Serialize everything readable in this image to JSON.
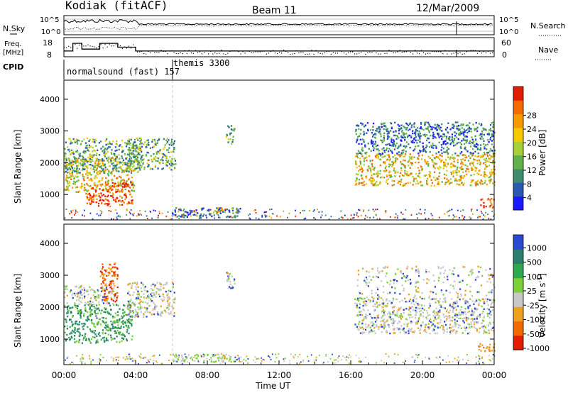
{
  "header": {
    "radar": "Kodiak (fitACF)",
    "beam": "Beam 11",
    "date": "12/Mar/2009"
  },
  "top_panels": {
    "nsky_label": "N.Sky",
    "nsearch_label": "N.Search",
    "nsky_ticks": [
      "10^5",
      "10^0"
    ],
    "nsearch_ticks": [
      "10^5",
      "10^0"
    ],
    "freq_label_1": "Freq.",
    "freq_label_2": "[MHz]",
    "freq_ticks": [
      "18",
      "8"
    ],
    "nave_label": "Nave",
    "nave_ticks": [
      "60",
      "0"
    ],
    "cpid_label": "CPID",
    "cpid_modes": [
      {
        "name": "normalsound (fast) 157",
        "start_hour": 0,
        "end_hour": 6.05
      },
      {
        "name": "themis 3300",
        "start_hour": 6.05,
        "end_hour": 24
      }
    ],
    "freq_steps": [
      {
        "start_hour": 0,
        "end_hour": 0.5,
        "mhz": 11
      },
      {
        "start_hour": 0.5,
        "end_hour": 1.0,
        "mhz": 15
      },
      {
        "start_hour": 1.0,
        "end_hour": 2.0,
        "mhz": 12
      },
      {
        "start_hour": 2.0,
        "end_hour": 3.0,
        "mhz": 15
      },
      {
        "start_hour": 3.0,
        "end_hour": 4.0,
        "mhz": 13
      },
      {
        "start_hour": 4.0,
        "end_hour": 24,
        "mhz": 11
      }
    ]
  },
  "chart_data": [
    {
      "type": "heatmap",
      "title": "Power",
      "ylabel": "Slant Range [km]",
      "ylim": [
        200,
        4600
      ],
      "yticks": [
        "1000",
        "2000",
        "3000",
        "4000"
      ],
      "colorbar_label": "Power [dB]",
      "colorbar_ticks": [
        "4",
        "8",
        "12",
        "16",
        "20",
        "24",
        "28"
      ],
      "colorbar_colors": [
        "#1a1aff",
        "#2a5ab0",
        "#3e8c6e",
        "#5fb24a",
        "#a6cf3a",
        "#f5c800",
        "#f59a00",
        "#f26a00",
        "#e21e00"
      ],
      "regions": [
        {
          "x": [
            0.0,
            3.9
          ],
          "y": [
            1100,
            2200
          ],
          "level": "high"
        },
        {
          "x": [
            1.2,
            3.8
          ],
          "y": [
            650,
            1400
          ],
          "level": "max"
        },
        {
          "x": [
            0.0,
            4.3
          ],
          "y": [
            1700,
            2800
          ],
          "level": "mid"
        },
        {
          "x": [
            3.5,
            6.2
          ],
          "y": [
            1800,
            2800
          ],
          "level": "mid"
        },
        {
          "x": [
            6.0,
            9.8
          ],
          "y": [
            300,
            600
          ],
          "level": "low"
        },
        {
          "x": [
            8.3,
            9.6
          ],
          "y": [
            400,
            600
          ],
          "level": "high"
        },
        {
          "x": [
            9.0,
            9.5
          ],
          "y": [
            2600,
            3200
          ],
          "level": "mid"
        },
        {
          "x": [
            16.2,
            24.0
          ],
          "y": [
            1300,
            2300
          ],
          "level": "high"
        },
        {
          "x": [
            16.2,
            24.0
          ],
          "y": [
            2300,
            3300
          ],
          "level": "low"
        },
        {
          "x": [
            23.2,
            24.0
          ],
          "y": [
            600,
            900
          ],
          "level": "max"
        }
      ]
    },
    {
      "type": "heatmap",
      "title": "Velocity",
      "ylabel": "Slant Range [km]",
      "xlabel": "Time UT",
      "ylim": [
        200,
        4600
      ],
      "xlim": [
        0,
        24
      ],
      "xticks": [
        "00:00",
        "04:00",
        "08:00",
        "12:00",
        "16:00",
        "20:00",
        "00:00"
      ],
      "yticks": [
        "1000",
        "2000",
        "3000",
        "4000"
      ],
      "colorbar_label": "Velocity [m s^-1]",
      "colorbar_ticks": [
        "1000",
        "500",
        "100",
        "25",
        "-25",
        "-100",
        "-500",
        "-1000"
      ],
      "colorbar_colors": [
        "#2a4ad0",
        "#2c7f6e",
        "#2fa84e",
        "#7cd03a",
        "#c8c8c8",
        "#f0a020",
        "#f06a00",
        "#e21e00"
      ],
      "regions": [
        {
          "x": [
            0.0,
            3.8
          ],
          "y": [
            900,
            2100
          ],
          "level": "toward"
        },
        {
          "x": [
            0.0,
            2.8
          ],
          "y": [
            2100,
            2700
          ],
          "level": "zero"
        },
        {
          "x": [
            2.0,
            3.0
          ],
          "y": [
            2200,
            3400
          ],
          "level": "away"
        },
        {
          "x": [
            3.5,
            6.2
          ],
          "y": [
            1700,
            2800
          ],
          "level": "zero"
        },
        {
          "x": [
            6.0,
            9.6
          ],
          "y": [
            300,
            550
          ],
          "level": "toward-slow"
        },
        {
          "x": [
            9.0,
            9.5
          ],
          "y": [
            2600,
            3200
          ],
          "level": "zero"
        },
        {
          "x": [
            16.2,
            24.0
          ],
          "y": [
            1200,
            2300
          ],
          "level": "zero"
        },
        {
          "x": [
            16.2,
            24.0
          ],
          "y": [
            2300,
            3300
          ],
          "level": "zero-sparse"
        },
        {
          "x": [
            23.0,
            24.0
          ],
          "y": [
            600,
            900
          ],
          "level": "away-slow"
        }
      ]
    }
  ],
  "colorbar_power_label": "Power [dB]",
  "colorbar_velocity_label": "Velocity [m s",
  "colorbar_velocity_sup": "-1",
  "colorbar_velocity_end": "]"
}
